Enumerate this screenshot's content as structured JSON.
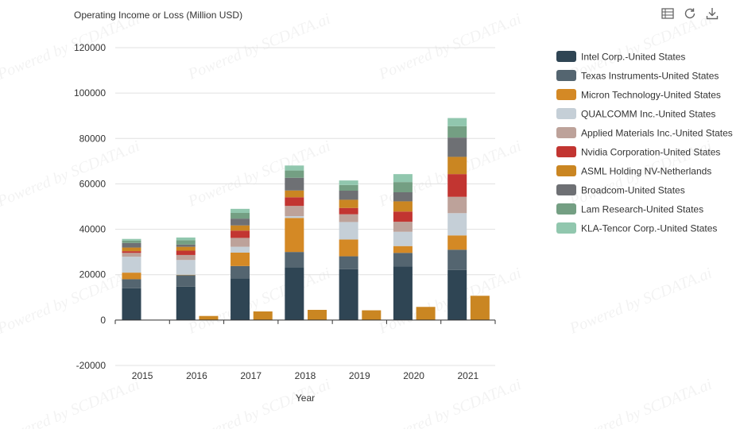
{
  "toolbar": {
    "data_view_icon": "data-view-icon",
    "restore_icon": "restore-icon",
    "download_icon": "download-icon"
  },
  "watermark": "Powered by SCDATA.ai",
  "chart_data": {
    "type": "bar",
    "stacked": true,
    "title": "Operating Income or Loss (Million USD)",
    "xlabel": "Year",
    "ylabel": "",
    "ylim": [
      -20000,
      120000
    ],
    "yticks": [
      -20000,
      0,
      20000,
      40000,
      60000,
      80000,
      100000,
      120000
    ],
    "categories": [
      "2015",
      "2016",
      "2017",
      "2018",
      "2019",
      "2020",
      "2021"
    ],
    "grid": true,
    "legend_position": "right",
    "series": [
      {
        "name": "Intel Corp.-United States",
        "color": "#2f4554",
        "values": [
          14000,
          14700,
          18300,
          23300,
          22400,
          23700,
          22100
        ]
      },
      {
        "name": "Texas Instruments-United States",
        "color": "#546570",
        "values": [
          4000,
          5100,
          5500,
          6700,
          5700,
          5900,
          8900
        ]
      },
      {
        "name": "Micron Technology-United States",
        "color": "#d48925",
        "values": [
          2900,
          170,
          5900,
          14990,
          7400,
          3000,
          6300
        ]
      },
      {
        "name": "QUALCOMM Inc.-United States",
        "color": "#c5cfd7",
        "values": [
          7000,
          6500,
          2600,
          800,
          7700,
          6300,
          9800
        ]
      },
      {
        "name": "Applied Materials Inc.-United States",
        "color": "#bda29a",
        "values": [
          1700,
          2200,
          3900,
          4500,
          3400,
          4400,
          7200
        ]
      },
      {
        "name": "Nvidia Corporation-United States",
        "color": "#c23531",
        "values": [
          750,
          1900,
          3200,
          3800,
          2800,
          4500,
          10000
        ]
      },
      {
        "name": "ASML Holding NV-Netherlands",
        "color": "#ca8622",
        "values": [
          1600,
          1700,
          2300,
          3000,
          3600,
          4500,
          7600
        ]
      },
      {
        "name": "Broadcom-United States",
        "color": "#6e7074",
        "values": [
          2000,
          1000,
          3000,
          5600,
          4000,
          4000,
          8500
        ]
      },
      {
        "name": "Lam Research-United States",
        "color": "#749f83",
        "values": [
          1100,
          1900,
          2500,
          3200,
          2500,
          4500,
          5000
        ]
      },
      {
        "name": "KLA-Tencor Corp.-United States",
        "color": "#91c7ae",
        "values": [
          700,
          1200,
          1800,
          2200,
          2000,
          3500,
          3600
        ]
      }
    ],
    "extra_bars": [
      {
        "category": "2016",
        "value": 1800,
        "color": "#ca8622"
      },
      {
        "category": "2017",
        "value": 3800,
        "color": "#ca8622"
      },
      {
        "category": "2018",
        "value": 4500,
        "color": "#ca8622"
      },
      {
        "category": "2019",
        "value": 4300,
        "color": "#ca8622"
      },
      {
        "category": "2020",
        "value": 5800,
        "color": "#ca8622"
      },
      {
        "category": "2021",
        "value": 10700,
        "color": "#ca8622"
      }
    ]
  }
}
